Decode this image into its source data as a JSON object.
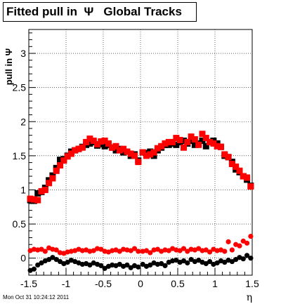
{
  "chart_data": {
    "type": "scatter",
    "title": "Fitted pull in  Ψ   Global Tracks",
    "xlabel": "η",
    "ylabel": "pull in Ψ",
    "xlim": [
      -1.5,
      1.5
    ],
    "ylim": [
      -0.25,
      3.35
    ],
    "x_ticks": [
      -1.5,
      -1,
      -0.5,
      0,
      0.5,
      1,
      1.5
    ],
    "x_tick_labels": [
      "-1.5",
      "-1",
      "-0.5",
      "0",
      "0.5",
      "1",
      "1.5"
    ],
    "y_ticks": [
      0,
      0.5,
      1,
      1.5,
      2,
      2.5,
      3
    ],
    "y_tick_labels": [
      "0",
      "0.5",
      "1",
      "1.5",
      "2",
      "2.5",
      "3"
    ],
    "grid": true,
    "timestamp": "Mon Oct 31 10:24:12 2011",
    "colors": {
      "black": "#000000",
      "red": "#ff0000"
    },
    "series": [
      {
        "marker": "square",
        "color": "#000000",
        "points": [
          [
            -1.48,
            0.85
          ],
          [
            -1.43,
            0.84
          ],
          [
            -1.38,
            0.95
          ],
          [
            -1.33,
            0.97
          ],
          [
            -1.28,
            1.03
          ],
          [
            -1.23,
            1.14
          ],
          [
            -1.18,
            1.21
          ],
          [
            -1.13,
            1.32
          ],
          [
            -1.08,
            1.44
          ],
          [
            -1.03,
            1.45
          ],
          [
            -0.98,
            1.5
          ],
          [
            -0.93,
            1.56
          ],
          [
            -0.88,
            1.58
          ],
          [
            -0.83,
            1.6
          ],
          [
            -0.78,
            1.63
          ],
          [
            -0.73,
            1.66
          ],
          [
            -0.68,
            1.68
          ],
          [
            -0.63,
            1.7
          ],
          [
            -0.58,
            1.65
          ],
          [
            -0.53,
            1.67
          ],
          [
            -0.48,
            1.64
          ],
          [
            -0.43,
            1.66
          ],
          [
            -0.38,
            1.62
          ],
          [
            -0.33,
            1.58
          ],
          [
            -0.28,
            1.6
          ],
          [
            -0.23,
            1.55
          ],
          [
            -0.18,
            1.56
          ],
          [
            -0.13,
            1.5
          ],
          [
            -0.08,
            1.52
          ],
          [
            -0.03,
            1.43
          ],
          [
            0.03,
            1.55
          ],
          [
            0.08,
            1.54
          ],
          [
            0.13,
            1.56
          ],
          [
            0.18,
            1.5
          ],
          [
            0.23,
            1.58
          ],
          [
            0.28,
            1.62
          ],
          [
            0.33,
            1.66
          ],
          [
            0.38,
            1.66
          ],
          [
            0.43,
            1.68
          ],
          [
            0.48,
            1.66
          ],
          [
            0.53,
            1.7
          ],
          [
            0.58,
            1.72
          ],
          [
            0.63,
            1.68
          ],
          [
            0.68,
            1.72
          ],
          [
            0.73,
            1.66
          ],
          [
            0.78,
            1.68
          ],
          [
            0.83,
            1.72
          ],
          [
            0.88,
            1.64
          ],
          [
            0.93,
            1.7
          ],
          [
            0.98,
            1.72
          ],
          [
            1.03,
            1.68
          ],
          [
            1.08,
            1.63
          ],
          [
            1.13,
            1.5
          ],
          [
            1.18,
            1.48
          ],
          [
            1.23,
            1.41
          ],
          [
            1.28,
            1.3
          ],
          [
            1.33,
            1.26
          ],
          [
            1.38,
            1.2
          ],
          [
            1.43,
            1.15
          ],
          [
            1.48,
            1.06
          ]
        ]
      },
      {
        "marker": "square",
        "color": "#ff0000",
        "points": [
          [
            -1.48,
            0.87
          ],
          [
            -1.43,
            0.86
          ],
          [
            -1.38,
            0.85
          ],
          [
            -1.33,
            0.98
          ],
          [
            -1.28,
            1.0
          ],
          [
            -1.23,
            1.1
          ],
          [
            -1.18,
            1.17
          ],
          [
            -1.13,
            1.28
          ],
          [
            -1.08,
            1.36
          ],
          [
            -1.03,
            1.43
          ],
          [
            -0.98,
            1.49
          ],
          [
            -0.93,
            1.53
          ],
          [
            -0.88,
            1.58
          ],
          [
            -0.83,
            1.6
          ],
          [
            -0.78,
            1.62
          ],
          [
            -0.73,
            1.7
          ],
          [
            -0.68,
            1.75
          ],
          [
            -0.63,
            1.72
          ],
          [
            -0.58,
            1.67
          ],
          [
            -0.53,
            1.71
          ],
          [
            -0.48,
            1.72
          ],
          [
            -0.43,
            1.68
          ],
          [
            -0.38,
            1.62
          ],
          [
            -0.33,
            1.64
          ],
          [
            -0.28,
            1.58
          ],
          [
            -0.23,
            1.6
          ],
          [
            -0.18,
            1.56
          ],
          [
            -0.13,
            1.53
          ],
          [
            -0.08,
            1.5
          ],
          [
            -0.03,
            1.41
          ],
          [
            0.03,
            1.55
          ],
          [
            0.08,
            1.5
          ],
          [
            0.13,
            1.52
          ],
          [
            0.18,
            1.55
          ],
          [
            0.23,
            1.61
          ],
          [
            0.28,
            1.64
          ],
          [
            0.33,
            1.68
          ],
          [
            0.38,
            1.7
          ],
          [
            0.43,
            1.7
          ],
          [
            0.48,
            1.76
          ],
          [
            0.53,
            1.73
          ],
          [
            0.58,
            1.62
          ],
          [
            0.63,
            1.7
          ],
          [
            0.68,
            1.78
          ],
          [
            0.73,
            1.74
          ],
          [
            0.78,
            1.66
          ],
          [
            0.83,
            1.82
          ],
          [
            0.88,
            1.76
          ],
          [
            0.93,
            1.7
          ],
          [
            0.98,
            1.68
          ],
          [
            1.03,
            1.64
          ],
          [
            1.08,
            1.63
          ],
          [
            1.13,
            1.52
          ],
          [
            1.18,
            1.48
          ],
          [
            1.23,
            1.38
          ],
          [
            1.28,
            1.34
          ],
          [
            1.33,
            1.28
          ],
          [
            1.38,
            1.2
          ],
          [
            1.43,
            1.18
          ],
          [
            1.48,
            1.05
          ]
        ]
      },
      {
        "marker": "circle",
        "color": "#ff0000",
        "points": [
          [
            -1.48,
            0.11
          ],
          [
            -1.43,
            0.13
          ],
          [
            -1.38,
            0.12
          ],
          [
            -1.33,
            0.13
          ],
          [
            -1.28,
            0.1
          ],
          [
            -1.23,
            0.15
          ],
          [
            -1.18,
            0.13
          ],
          [
            -1.13,
            0.12
          ],
          [
            -1.08,
            0.08
          ],
          [
            -1.03,
            0.07
          ],
          [
            -0.98,
            0.09
          ],
          [
            -0.93,
            0.1
          ],
          [
            -0.88,
            0.11
          ],
          [
            -0.83,
            0.13
          ],
          [
            -0.78,
            0.11
          ],
          [
            -0.73,
            0.12
          ],
          [
            -0.68,
            0.1
          ],
          [
            -0.63,
            0.11
          ],
          [
            -0.58,
            0.14
          ],
          [
            -0.53,
            0.13
          ],
          [
            -0.48,
            0.1
          ],
          [
            -0.43,
            0.09
          ],
          [
            -0.38,
            0.11
          ],
          [
            -0.33,
            0.12
          ],
          [
            -0.28,
            0.1
          ],
          [
            -0.23,
            0.13
          ],
          [
            -0.18,
            0.12
          ],
          [
            -0.13,
            0.11
          ],
          [
            -0.08,
            0.14
          ],
          [
            -0.03,
            0.1
          ],
          [
            0.03,
            0.1
          ],
          [
            0.08,
            0.11
          ],
          [
            0.13,
            0.08
          ],
          [
            0.18,
            0.12
          ],
          [
            0.23,
            0.13
          ],
          [
            0.28,
            0.1
          ],
          [
            0.33,
            0.12
          ],
          [
            0.38,
            0.11
          ],
          [
            0.43,
            0.14
          ],
          [
            0.48,
            0.12
          ],
          [
            0.53,
            0.11
          ],
          [
            0.58,
            0.14
          ],
          [
            0.63,
            0.1
          ],
          [
            0.68,
            0.13
          ],
          [
            0.73,
            0.12
          ],
          [
            0.78,
            0.14
          ],
          [
            0.83,
            0.11
          ],
          [
            0.88,
            0.12
          ],
          [
            0.93,
            0.09
          ],
          [
            0.98,
            0.13
          ],
          [
            1.03,
            0.11
          ],
          [
            1.08,
            0.12
          ],
          [
            1.13,
            0.1
          ],
          [
            1.18,
            0.24
          ],
          [
            1.23,
            0.12
          ],
          [
            1.28,
            0.2
          ],
          [
            1.33,
            0.18
          ],
          [
            1.38,
            0.25
          ],
          [
            1.43,
            0.22
          ],
          [
            1.48,
            0.32
          ]
        ]
      },
      {
        "marker": "circle",
        "color": "#000000",
        "points": [
          [
            -1.48,
            -0.18
          ],
          [
            -1.43,
            -0.16
          ],
          [
            -1.38,
            -0.1
          ],
          [
            -1.33,
            -0.07
          ],
          [
            -1.28,
            -0.04
          ],
          [
            -1.23,
            -0.02
          ],
          [
            -1.18,
            0.01
          ],
          [
            -1.13,
            -0.02
          ],
          [
            -1.08,
            -0.05
          ],
          [
            -1.03,
            -0.08
          ],
          [
            -0.98,
            -0.06
          ],
          [
            -0.93,
            -0.03
          ],
          [
            -0.88,
            -0.05
          ],
          [
            -0.83,
            -0.07
          ],
          [
            -0.78,
            -0.09
          ],
          [
            -0.73,
            -0.08
          ],
          [
            -0.68,
            -0.1
          ],
          [
            -0.63,
            -0.07
          ],
          [
            -0.58,
            -0.09
          ],
          [
            -0.53,
            -0.11
          ],
          [
            -0.48,
            -0.15
          ],
          [
            -0.43,
            -0.12
          ],
          [
            -0.38,
            -0.1
          ],
          [
            -0.33,
            -0.11
          ],
          [
            -0.28,
            -0.09
          ],
          [
            -0.23,
            -0.12
          ],
          [
            -0.18,
            -0.1
          ],
          [
            -0.13,
            -0.14
          ],
          [
            -0.08,
            -0.11
          ],
          [
            -0.03,
            -0.13
          ],
          [
            0.03,
            -0.09
          ],
          [
            0.08,
            -0.12
          ],
          [
            0.13,
            -0.1
          ],
          [
            0.18,
            -0.07
          ],
          [
            0.23,
            -0.09
          ],
          [
            0.28,
            -0.08
          ],
          [
            0.33,
            -0.11
          ],
          [
            0.38,
            -0.06
          ],
          [
            0.43,
            -0.04
          ],
          [
            0.48,
            -0.03
          ],
          [
            0.53,
            -0.06
          ],
          [
            0.58,
            -0.04
          ],
          [
            0.63,
            -0.07
          ],
          [
            0.68,
            -0.02
          ],
          [
            0.73,
            -0.05
          ],
          [
            0.78,
            -0.03
          ],
          [
            0.83,
            -0.06
          ],
          [
            0.88,
            -0.08
          ],
          [
            0.93,
            -0.05
          ],
          [
            0.98,
            -0.09
          ],
          [
            1.03,
            -0.07
          ],
          [
            1.08,
            -0.04
          ],
          [
            1.13,
            -0.06
          ],
          [
            1.18,
            -0.03
          ],
          [
            1.23,
            -0.05
          ],
          [
            1.28,
            -0.02
          ],
          [
            1.33,
            0.01
          ],
          [
            1.38,
            -0.01
          ],
          [
            1.43,
            0.04
          ],
          [
            1.48,
            0.0
          ]
        ]
      }
    ]
  }
}
